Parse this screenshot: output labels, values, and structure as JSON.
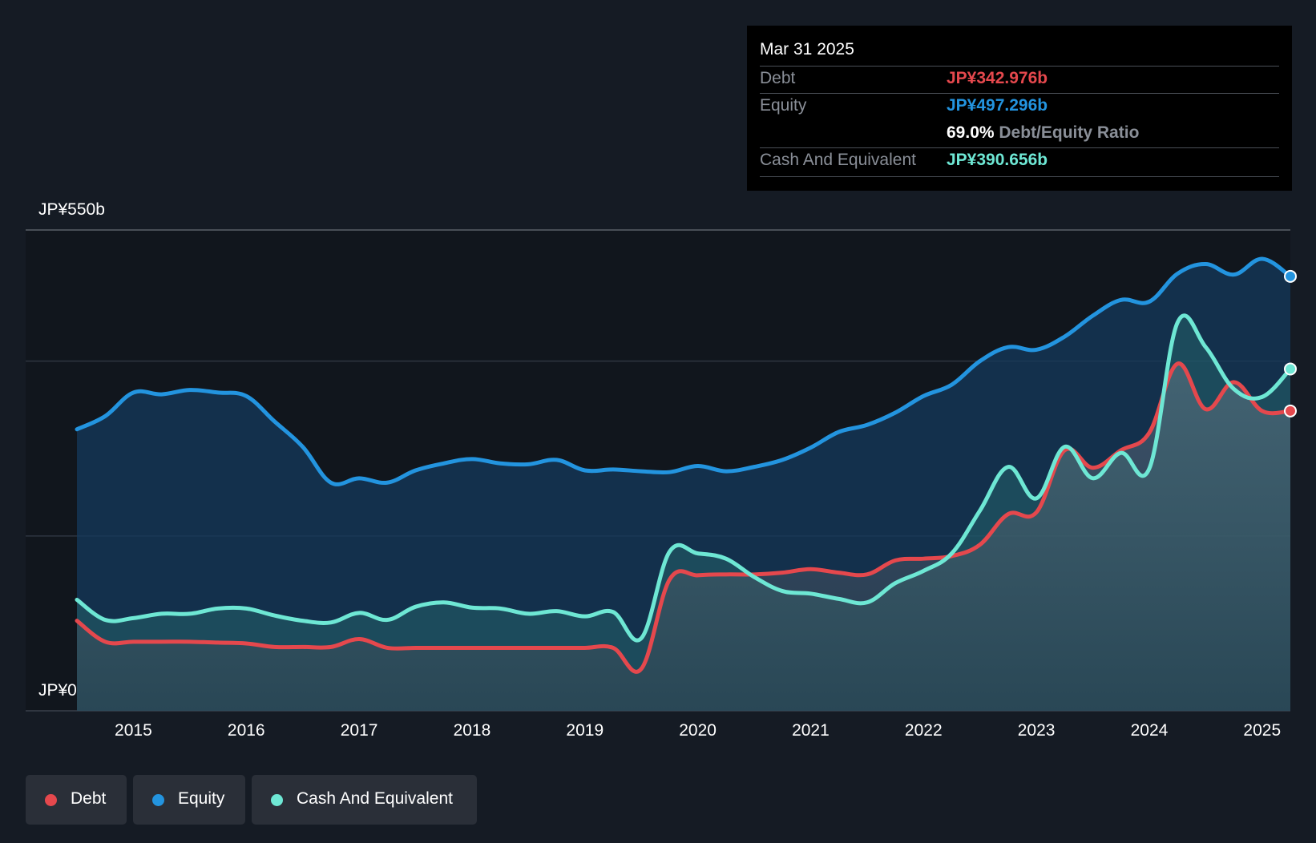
{
  "tooltip": {
    "date": "Mar 31 2025",
    "debt_label": "Debt",
    "debt_value": "JP¥342.976b",
    "equity_label": "Equity",
    "equity_value": "JP¥497.296b",
    "ratio_value": "69.0%",
    "ratio_label": "Debt/Equity Ratio",
    "cash_label": "Cash And Equivalent",
    "cash_value": "JP¥390.656b"
  },
  "legend": {
    "debt": "Debt",
    "equity": "Equity",
    "cash": "Cash And Equivalent"
  },
  "colors": {
    "debt": "#e5484d",
    "equity": "#2394df",
    "cash": "#6ee7d4",
    "background": "#151b24"
  },
  "chart_data": {
    "type": "area",
    "y_axis_labels": [
      "JP¥550b",
      "JP¥0"
    ],
    "ylim": [
      0,
      550
    ],
    "xlim": [
      2014.5,
      2025.25
    ],
    "x_ticks": [
      "2015",
      "2016",
      "2017",
      "2018",
      "2019",
      "2020",
      "2021",
      "2022",
      "2023",
      "2024",
      "2025"
    ],
    "grid": true,
    "legend_position": "bottom-left",
    "series": [
      {
        "name": "Equity",
        "points": [
          [
            2014.5,
            322
          ],
          [
            2014.75,
            337
          ],
          [
            2015.0,
            364
          ],
          [
            2015.25,
            362
          ],
          [
            2015.5,
            367
          ],
          [
            2015.75,
            364
          ],
          [
            2016.0,
            360
          ],
          [
            2016.25,
            331
          ],
          [
            2016.5,
            302
          ],
          [
            2016.75,
            261
          ],
          [
            2017.0,
            266
          ],
          [
            2017.25,
            261
          ],
          [
            2017.5,
            275
          ],
          [
            2017.75,
            283
          ],
          [
            2018.0,
            288
          ],
          [
            2018.25,
            283
          ],
          [
            2018.5,
            282
          ],
          [
            2018.75,
            287
          ],
          [
            2019.0,
            275
          ],
          [
            2019.25,
            276
          ],
          [
            2019.5,
            274
          ],
          [
            2019.75,
            273
          ],
          [
            2020.0,
            280
          ],
          [
            2020.25,
            274
          ],
          [
            2020.5,
            279
          ],
          [
            2020.75,
            287
          ],
          [
            2021.0,
            301
          ],
          [
            2021.25,
            319
          ],
          [
            2021.5,
            327
          ],
          [
            2021.75,
            341
          ],
          [
            2022.0,
            360
          ],
          [
            2022.25,
            373
          ],
          [
            2022.5,
            400
          ],
          [
            2022.75,
            416
          ],
          [
            2023.0,
            413
          ],
          [
            2023.25,
            428
          ],
          [
            2023.5,
            452
          ],
          [
            2023.75,
            470
          ],
          [
            2024.0,
            468
          ],
          [
            2024.25,
            500
          ],
          [
            2024.5,
            511
          ],
          [
            2024.75,
            499
          ],
          [
            2025.0,
            517
          ],
          [
            2025.25,
            497
          ]
        ]
      },
      {
        "name": "Debt",
        "points": [
          [
            2014.5,
            103
          ],
          [
            2014.75,
            79
          ],
          [
            2015.0,
            79
          ],
          [
            2015.25,
            79
          ],
          [
            2015.5,
            79
          ],
          [
            2015.75,
            78
          ],
          [
            2016.0,
            77
          ],
          [
            2016.25,
            73
          ],
          [
            2016.5,
            73
          ],
          [
            2016.75,
            73
          ],
          [
            2017.0,
            82
          ],
          [
            2017.25,
            72
          ],
          [
            2017.5,
            72
          ],
          [
            2017.75,
            72
          ],
          [
            2018.0,
            72
          ],
          [
            2018.25,
            72
          ],
          [
            2018.5,
            72
          ],
          [
            2018.75,
            72
          ],
          [
            2019.0,
            72
          ],
          [
            2019.25,
            72
          ],
          [
            2019.5,
            48
          ],
          [
            2019.75,
            150
          ],
          [
            2020.0,
            155
          ],
          [
            2020.25,
            156
          ],
          [
            2020.5,
            156
          ],
          [
            2020.75,
            158
          ],
          [
            2021.0,
            162
          ],
          [
            2021.25,
            158
          ],
          [
            2021.5,
            156
          ],
          [
            2021.75,
            172
          ],
          [
            2022.0,
            174
          ],
          [
            2022.25,
            177
          ],
          [
            2022.5,
            190
          ],
          [
            2022.75,
            225
          ],
          [
            2023.0,
            227
          ],
          [
            2023.25,
            298
          ],
          [
            2023.5,
            278
          ],
          [
            2023.75,
            298
          ],
          [
            2024.0,
            318
          ],
          [
            2024.25,
            397
          ],
          [
            2024.5,
            345
          ],
          [
            2024.75,
            376
          ],
          [
            2025.0,
            343
          ],
          [
            2025.25,
            343
          ]
        ]
      },
      {
        "name": "Cash And Equivalent",
        "points": [
          [
            2014.5,
            127
          ],
          [
            2014.75,
            104
          ],
          [
            2015.0,
            106
          ],
          [
            2015.25,
            111
          ],
          [
            2015.5,
            111
          ],
          [
            2015.75,
            117
          ],
          [
            2016.0,
            117
          ],
          [
            2016.25,
            109
          ],
          [
            2016.5,
            103
          ],
          [
            2016.75,
            101
          ],
          [
            2017.0,
            112
          ],
          [
            2017.25,
            104
          ],
          [
            2017.5,
            119
          ],
          [
            2017.75,
            124
          ],
          [
            2018.0,
            118
          ],
          [
            2018.25,
            117
          ],
          [
            2018.5,
            111
          ],
          [
            2018.75,
            114
          ],
          [
            2019.0,
            108
          ],
          [
            2019.25,
            113
          ],
          [
            2019.5,
            83
          ],
          [
            2019.75,
            182
          ],
          [
            2020.0,
            180
          ],
          [
            2020.25,
            174
          ],
          [
            2020.5,
            153
          ],
          [
            2020.75,
            137
          ],
          [
            2021.0,
            134
          ],
          [
            2021.25,
            128
          ],
          [
            2021.5,
            124
          ],
          [
            2021.75,
            146
          ],
          [
            2022.0,
            160
          ],
          [
            2022.25,
            180
          ],
          [
            2022.5,
            229
          ],
          [
            2022.75,
            279
          ],
          [
            2023.0,
            243
          ],
          [
            2023.25,
            302
          ],
          [
            2023.5,
            266
          ],
          [
            2023.75,
            295
          ],
          [
            2024.0,
            277
          ],
          [
            2024.25,
            444
          ],
          [
            2024.5,
            416
          ],
          [
            2024.75,
            368
          ],
          [
            2025.0,
            359
          ],
          [
            2025.25,
            391
          ]
        ]
      }
    ]
  }
}
